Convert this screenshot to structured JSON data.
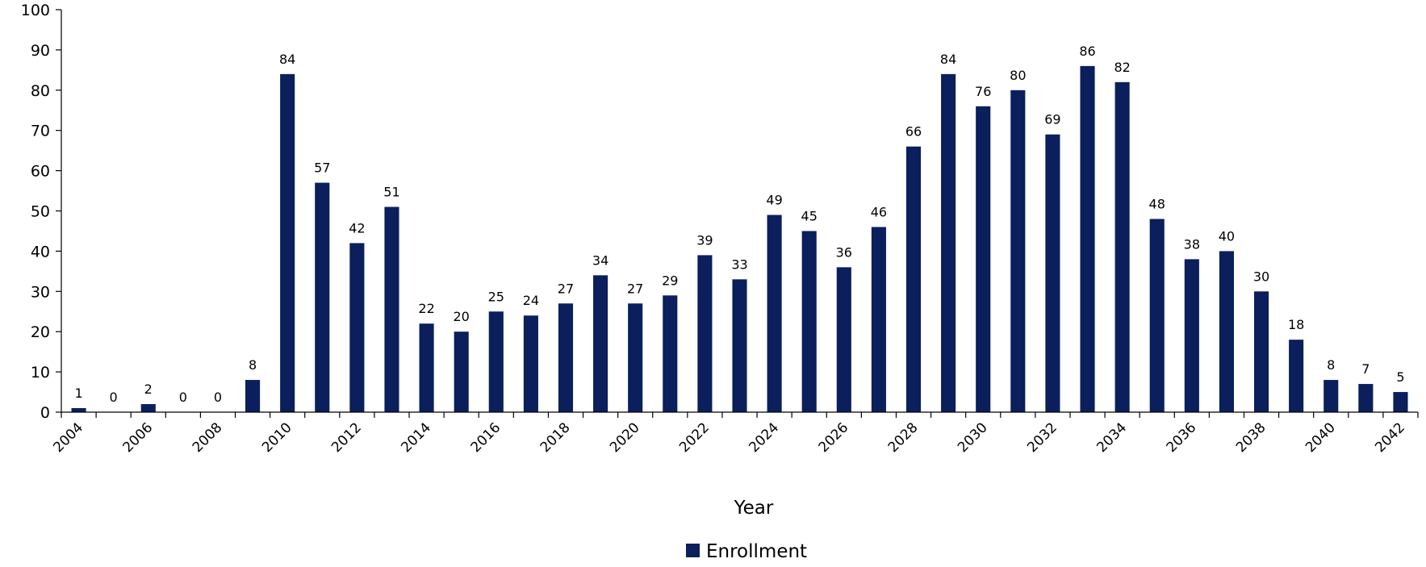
{
  "chart_data": {
    "type": "bar",
    "x": [
      2004,
      2005,
      2006,
      2007,
      2008,
      2009,
      2010,
      2011,
      2012,
      2013,
      2014,
      2015,
      2016,
      2017,
      2018,
      2019,
      2020,
      2021,
      2022,
      2023,
      2024,
      2025,
      2026,
      2027,
      2028,
      2029,
      2030,
      2031,
      2032,
      2033,
      2034,
      2035,
      2036,
      2037,
      2038,
      2039,
      2040,
      2041,
      2042
    ],
    "x_tick_labels": [
      "2004",
      "2006",
      "2008",
      "2010",
      "2012",
      "2014",
      "2016",
      "2018",
      "2020",
      "2022",
      "2024",
      "2026",
      "2028",
      "2030",
      "2032",
      "2034",
      "2036",
      "2038",
      "2040",
      "2042"
    ],
    "series": [
      {
        "name": "Enrollment",
        "color": "#0a1f5c",
        "values": [
          1,
          0,
          2,
          0,
          0,
          8,
          84,
          57,
          42,
          51,
          22,
          20,
          25,
          24,
          27,
          34,
          27,
          29,
          39,
          33,
          49,
          45,
          36,
          46,
          66,
          84,
          76,
          80,
          69,
          86,
          82,
          48,
          38,
          40,
          30,
          18,
          8,
          7,
          5
        ]
      }
    ],
    "xlabel": "Year",
    "ylabel": "",
    "ylim": [
      0,
      100
    ],
    "y_ticks": [
      0,
      10,
      20,
      30,
      40,
      50,
      60,
      70,
      80,
      90,
      100
    ],
    "grid": false,
    "legend": {
      "position": "bottom-center"
    },
    "data_labels": true
  }
}
